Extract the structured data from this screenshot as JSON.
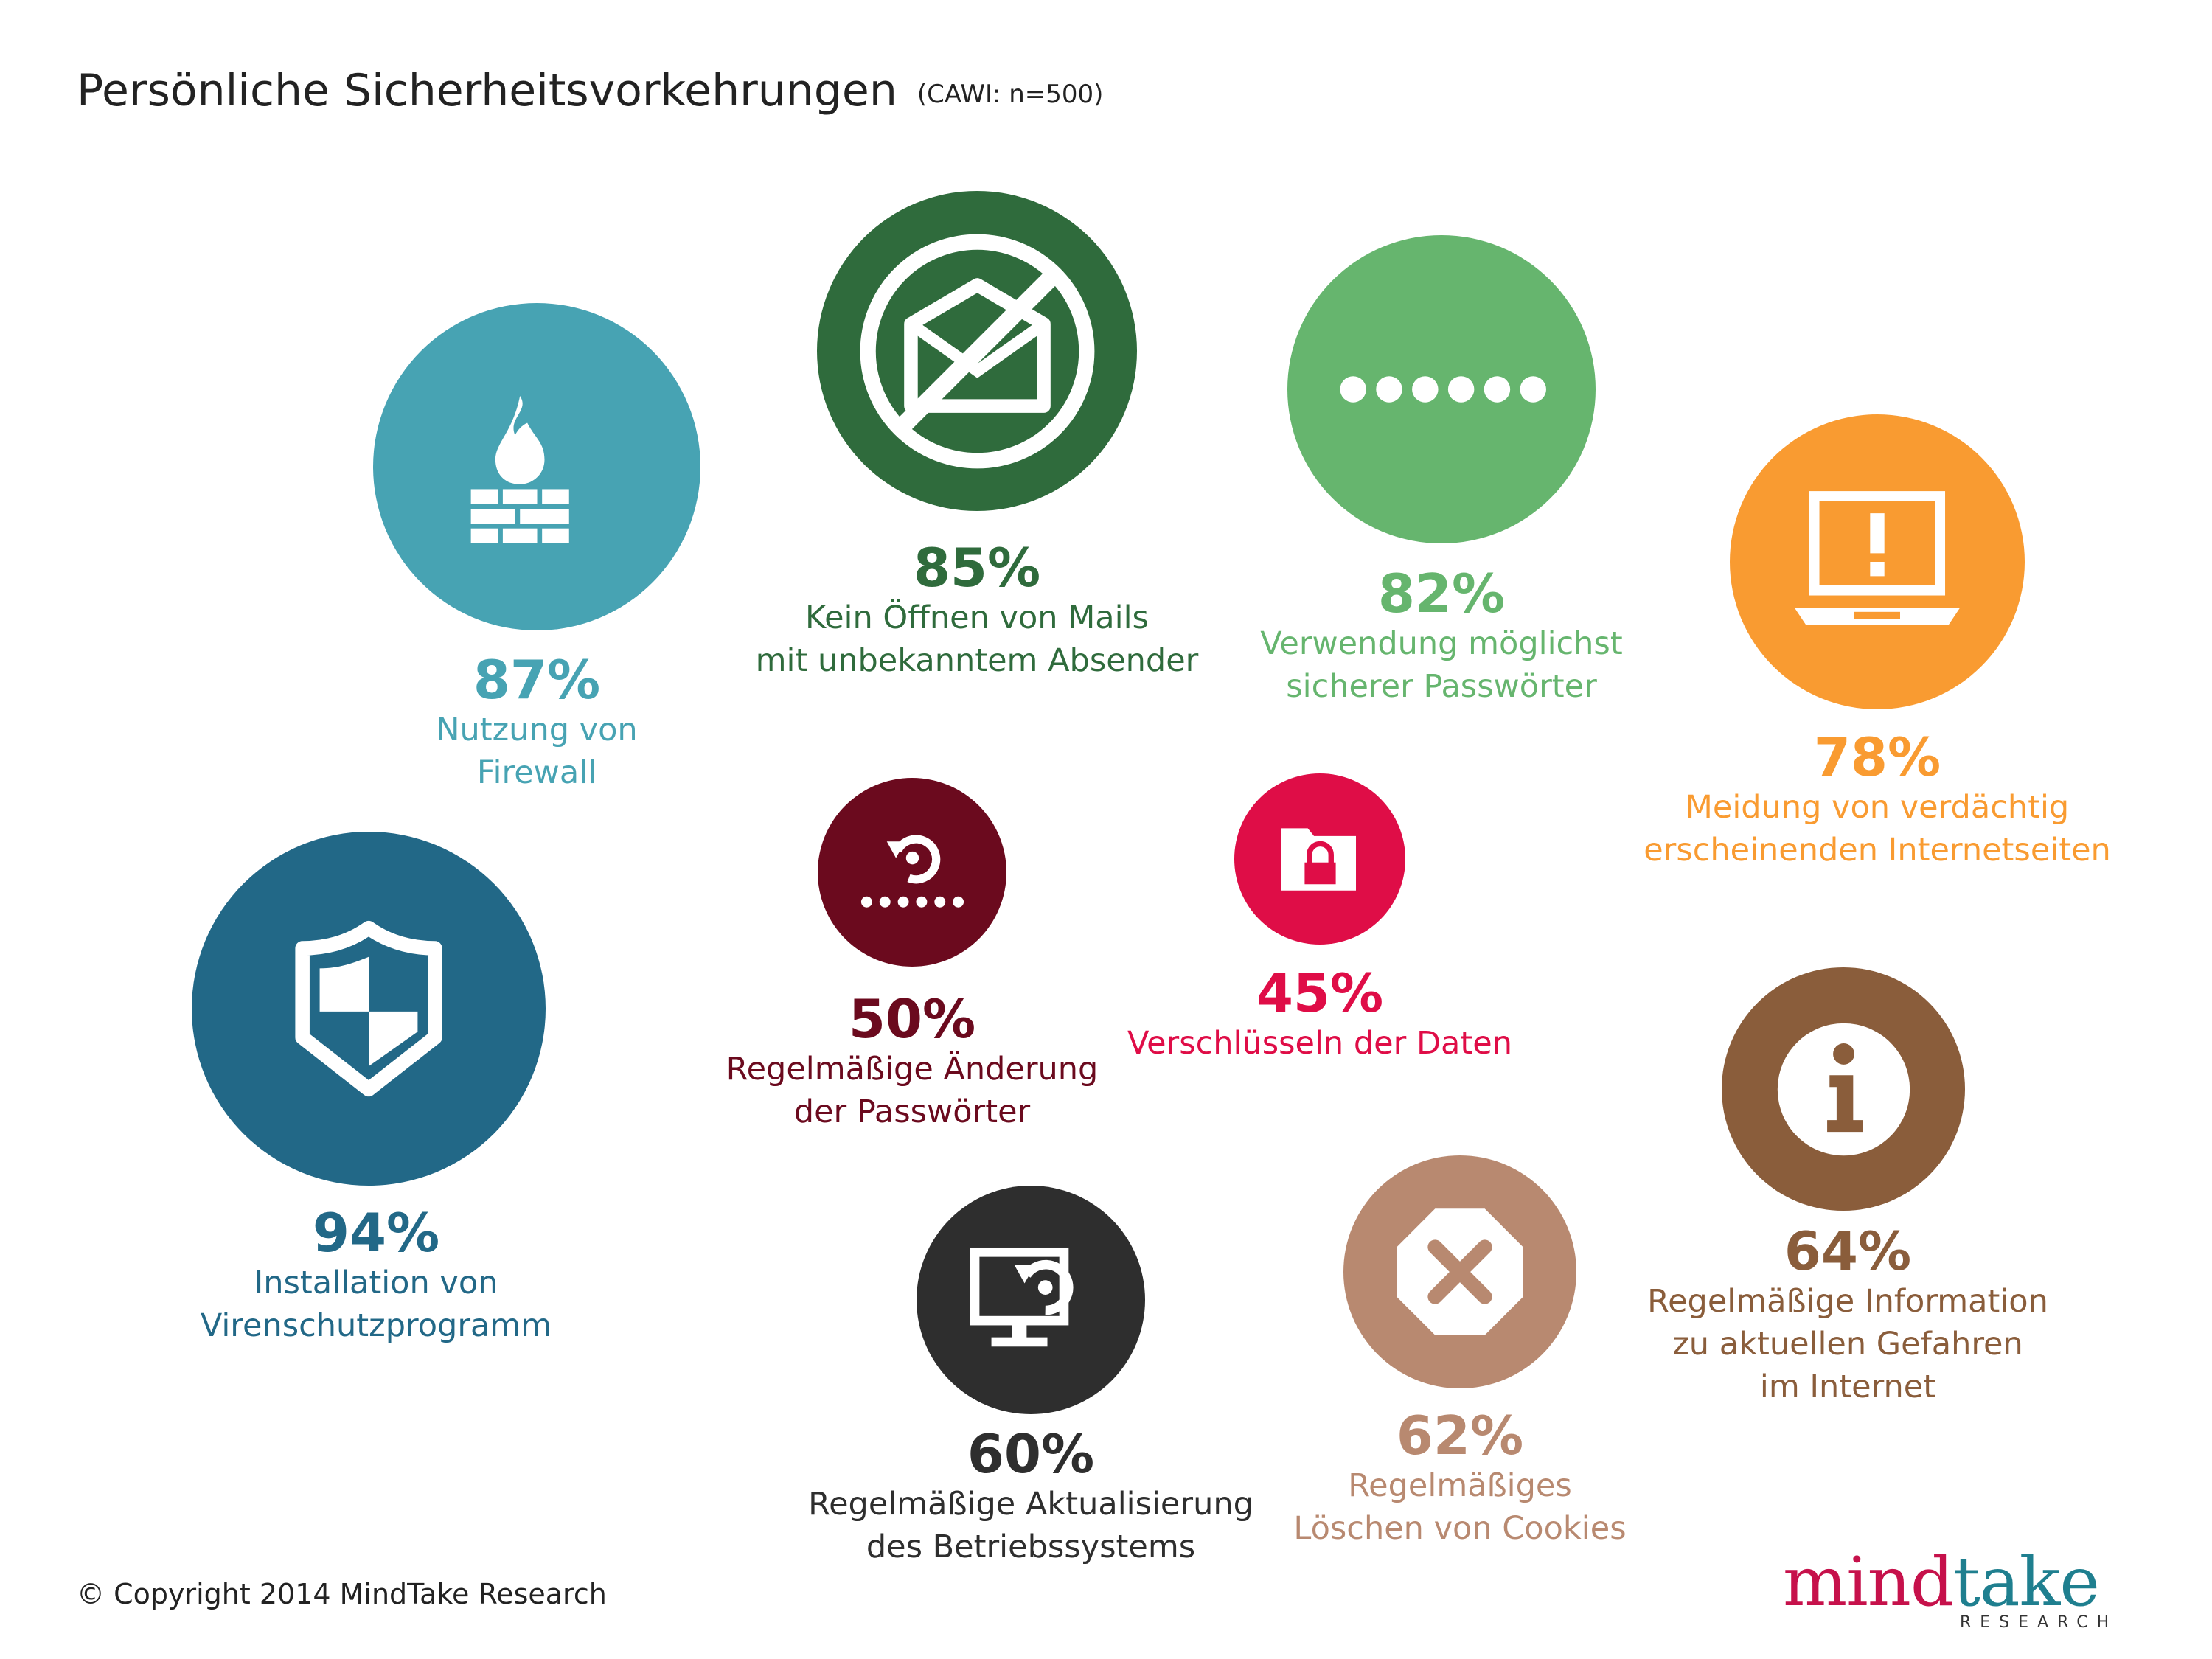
{
  "header": {
    "title": "Persönliche Sicherheitsvorkehrungen",
    "subtitle": "(CAWI: n=500)"
  },
  "footer": {
    "copyright": "© Copyright 2014 MindTake Research",
    "logo": {
      "word1": "mind",
      "word2": "take",
      "tagline": "RESEARCH"
    }
  },
  "colors": {
    "firewall": "#47a3b3",
    "mails": "#2f6b3c",
    "passwords": "#66b56e",
    "websites": "#f99b31",
    "antivirus": "#226887",
    "pwchange": "#6b0a1e",
    "encrypt": "#df0d47",
    "info": "#8a5d3b",
    "os_update": "#2e2e2e",
    "cookies": "#b88970"
  },
  "chart_data": {
    "type": "bubble",
    "title": "Persönliche Sicherheitsvorkehrungen",
    "subtitle": "(CAWI: n=500)",
    "unit": "%",
    "items": [
      {
        "key": "firewall",
        "value": 87,
        "pct": "87%",
        "lines": [
          "Nutzung von",
          "Firewall"
        ],
        "icon": "firewall-icon"
      },
      {
        "key": "mails",
        "value": 85,
        "pct": "85%",
        "lines": [
          "Kein Öffnen von Mails",
          "mit unbekanntem Absender"
        ],
        "icon": "no-mail-icon"
      },
      {
        "key": "passwords",
        "value": 82,
        "pct": "82%",
        "lines": [
          "Verwendung möglichst",
          "sicherer Passwörter"
        ],
        "icon": "password-dots-icon"
      },
      {
        "key": "websites",
        "value": 78,
        "pct": "78%",
        "lines": [
          "Meidung von verdächtig",
          "erscheinenden Internetseiten"
        ],
        "icon": "laptop-warning-icon"
      },
      {
        "key": "antivirus",
        "value": 94,
        "pct": "94%",
        "lines": [
          "Installation von",
          "Virenschutzprogramm"
        ],
        "icon": "shield-icon"
      },
      {
        "key": "pwchange",
        "value": 50,
        "pct": "50%",
        "lines": [
          "Regelmäßige Änderung",
          "der Passwörter"
        ],
        "icon": "password-refresh-icon"
      },
      {
        "key": "encrypt",
        "value": 45,
        "pct": "45%",
        "lines": [
          "Verschlüsseln der Daten"
        ],
        "icon": "locked-folder-icon"
      },
      {
        "key": "info",
        "value": 64,
        "pct": "64%",
        "lines": [
          "Regelmäßige Information",
          "zu aktuellen Gefahren",
          "im Internet"
        ],
        "icon": "info-icon"
      },
      {
        "key": "os_update",
        "value": 60,
        "pct": "60%",
        "lines": [
          "Regelmäßige Aktualisierung",
          "des Betriebssystems"
        ],
        "icon": "monitor-update-icon"
      },
      {
        "key": "cookies",
        "value": 62,
        "pct": "62%",
        "lines": [
          "Regelmäßiges",
          "Löschen von Cookies"
        ],
        "icon": "delete-cookies-icon"
      }
    ]
  }
}
